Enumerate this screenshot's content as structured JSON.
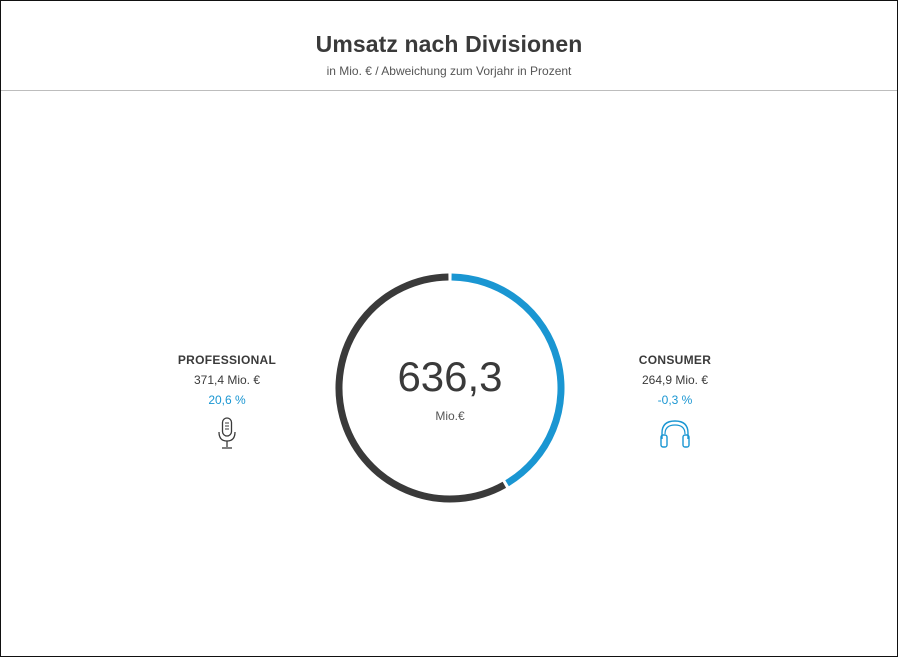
{
  "colors": {
    "professional": "#3a3a3a",
    "consumer": "#1a96d2",
    "change_professional": "#1a96d2",
    "change_consumer": "#1a96d2"
  },
  "chart_data": {
    "type": "pie",
    "title": "Umsatz nach Divisionen",
    "subtitle": "in Mio. € / Abweichung zum Vorjahr in Prozent",
    "total": {
      "value": 636.3,
      "label": "636,3",
      "unit": "Mio.€"
    },
    "series": [
      {
        "name": "PROFESSIONAL",
        "value": 371.4,
        "value_label": "371,4 Mio. €",
        "change_label": "20,6 %",
        "color": "#3a3a3a",
        "icon": "microphone-icon"
      },
      {
        "name": "CONSUMER",
        "value": 264.9,
        "value_label": "264,9 Mio. €",
        "change_label": "-0,3 %",
        "color": "#1a96d2",
        "icon": "headphones-icon"
      }
    ]
  }
}
